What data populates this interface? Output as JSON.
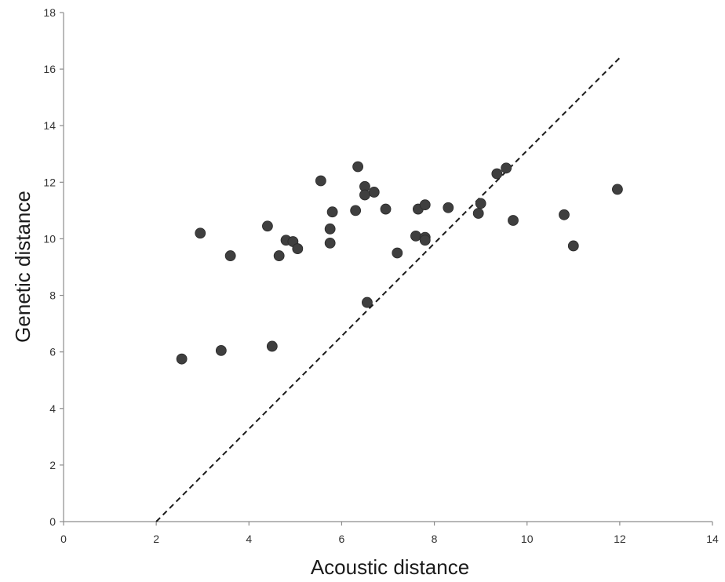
{
  "chart_data": {
    "type": "scatter",
    "xlabel": "Acoustic distance",
    "ylabel": "Genetic distance",
    "xlim": [
      0,
      14
    ],
    "ylim": [
      0,
      18
    ],
    "xticks": [
      0,
      2,
      4,
      6,
      8,
      10,
      12,
      14
    ],
    "yticks": [
      0,
      2,
      4,
      6,
      8,
      10,
      12,
      14,
      16,
      18
    ],
    "grid": false,
    "legend": "none",
    "marker_color": "#3f3f3f",
    "points": [
      {
        "x": 2.55,
        "y": 5.75
      },
      {
        "x": 2.95,
        "y": 10.2
      },
      {
        "x": 3.4,
        "y": 6.05
      },
      {
        "x": 3.6,
        "y": 9.4
      },
      {
        "x": 4.4,
        "y": 10.45
      },
      {
        "x": 4.5,
        "y": 6.2
      },
      {
        "x": 4.65,
        "y": 9.4
      },
      {
        "x": 4.8,
        "y": 9.95
      },
      {
        "x": 4.95,
        "y": 9.9
      },
      {
        "x": 5.05,
        "y": 9.65
      },
      {
        "x": 5.55,
        "y": 12.05
      },
      {
        "x": 5.75,
        "y": 10.35
      },
      {
        "x": 5.75,
        "y": 9.85
      },
      {
        "x": 5.8,
        "y": 10.95
      },
      {
        "x": 6.3,
        "y": 11.0
      },
      {
        "x": 6.35,
        "y": 12.55
      },
      {
        "x": 6.5,
        "y": 11.85
      },
      {
        "x": 6.5,
        "y": 11.55
      },
      {
        "x": 6.55,
        "y": 7.75
      },
      {
        "x": 6.7,
        "y": 11.65
      },
      {
        "x": 6.95,
        "y": 11.05
      },
      {
        "x": 7.2,
        "y": 9.5
      },
      {
        "x": 7.6,
        "y": 10.1
      },
      {
        "x": 7.65,
        "y": 11.05
      },
      {
        "x": 7.8,
        "y": 11.2
      },
      {
        "x": 7.8,
        "y": 10.05
      },
      {
        "x": 7.8,
        "y": 9.95
      },
      {
        "x": 8.3,
        "y": 11.1
      },
      {
        "x": 8.95,
        "y": 10.9
      },
      {
        "x": 9.0,
        "y": 11.25
      },
      {
        "x": 9.35,
        "y": 12.3
      },
      {
        "x": 9.55,
        "y": 12.5
      },
      {
        "x": 9.7,
        "y": 10.65
      },
      {
        "x": 10.8,
        "y": 10.85
      },
      {
        "x": 11.0,
        "y": 9.75
      },
      {
        "x": 11.95,
        "y": 11.75
      }
    ],
    "trendline": {
      "style": "dashed",
      "from": {
        "x": 2.0,
        "y": 0.0
      },
      "to": {
        "x": 12.0,
        "y": 16.4
      }
    }
  }
}
